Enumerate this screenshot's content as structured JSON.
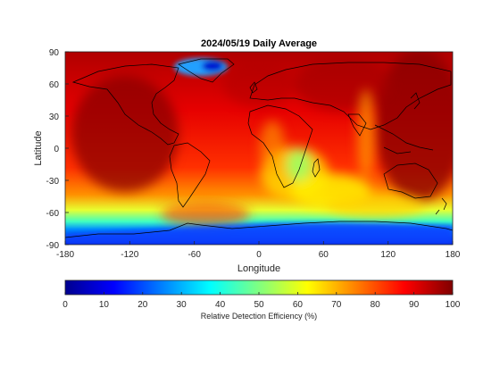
{
  "map": {
    "title": "2024/05/19 Daily Average",
    "xlabel": "Longitude",
    "ylabel": "Latitude",
    "xlim": [
      -180,
      180
    ],
    "ylim": [
      -90,
      90
    ],
    "x_ticks": [
      "-180",
      "-120",
      "-60",
      "0",
      "60",
      "120",
      "180"
    ],
    "y_ticks": [
      "90",
      "60",
      "30",
      "0",
      "-30",
      "-60",
      "-90"
    ],
    "projection": "equirectangular",
    "coastlines": true
  },
  "colorbar": {
    "label": "Relative Detection Efficiency (%)",
    "range": [
      0,
      100
    ],
    "ticks": [
      "0",
      "10",
      "20",
      "30",
      "40",
      "50",
      "60",
      "70",
      "80",
      "90",
      "100"
    ],
    "colormap": "jet",
    "colors": [
      "#00008f",
      "#0000ff",
      "#0080ff",
      "#00ffff",
      "#80ff80",
      "#ffff00",
      "#ff8000",
      "#ff0000",
      "#800000"
    ]
  }
}
